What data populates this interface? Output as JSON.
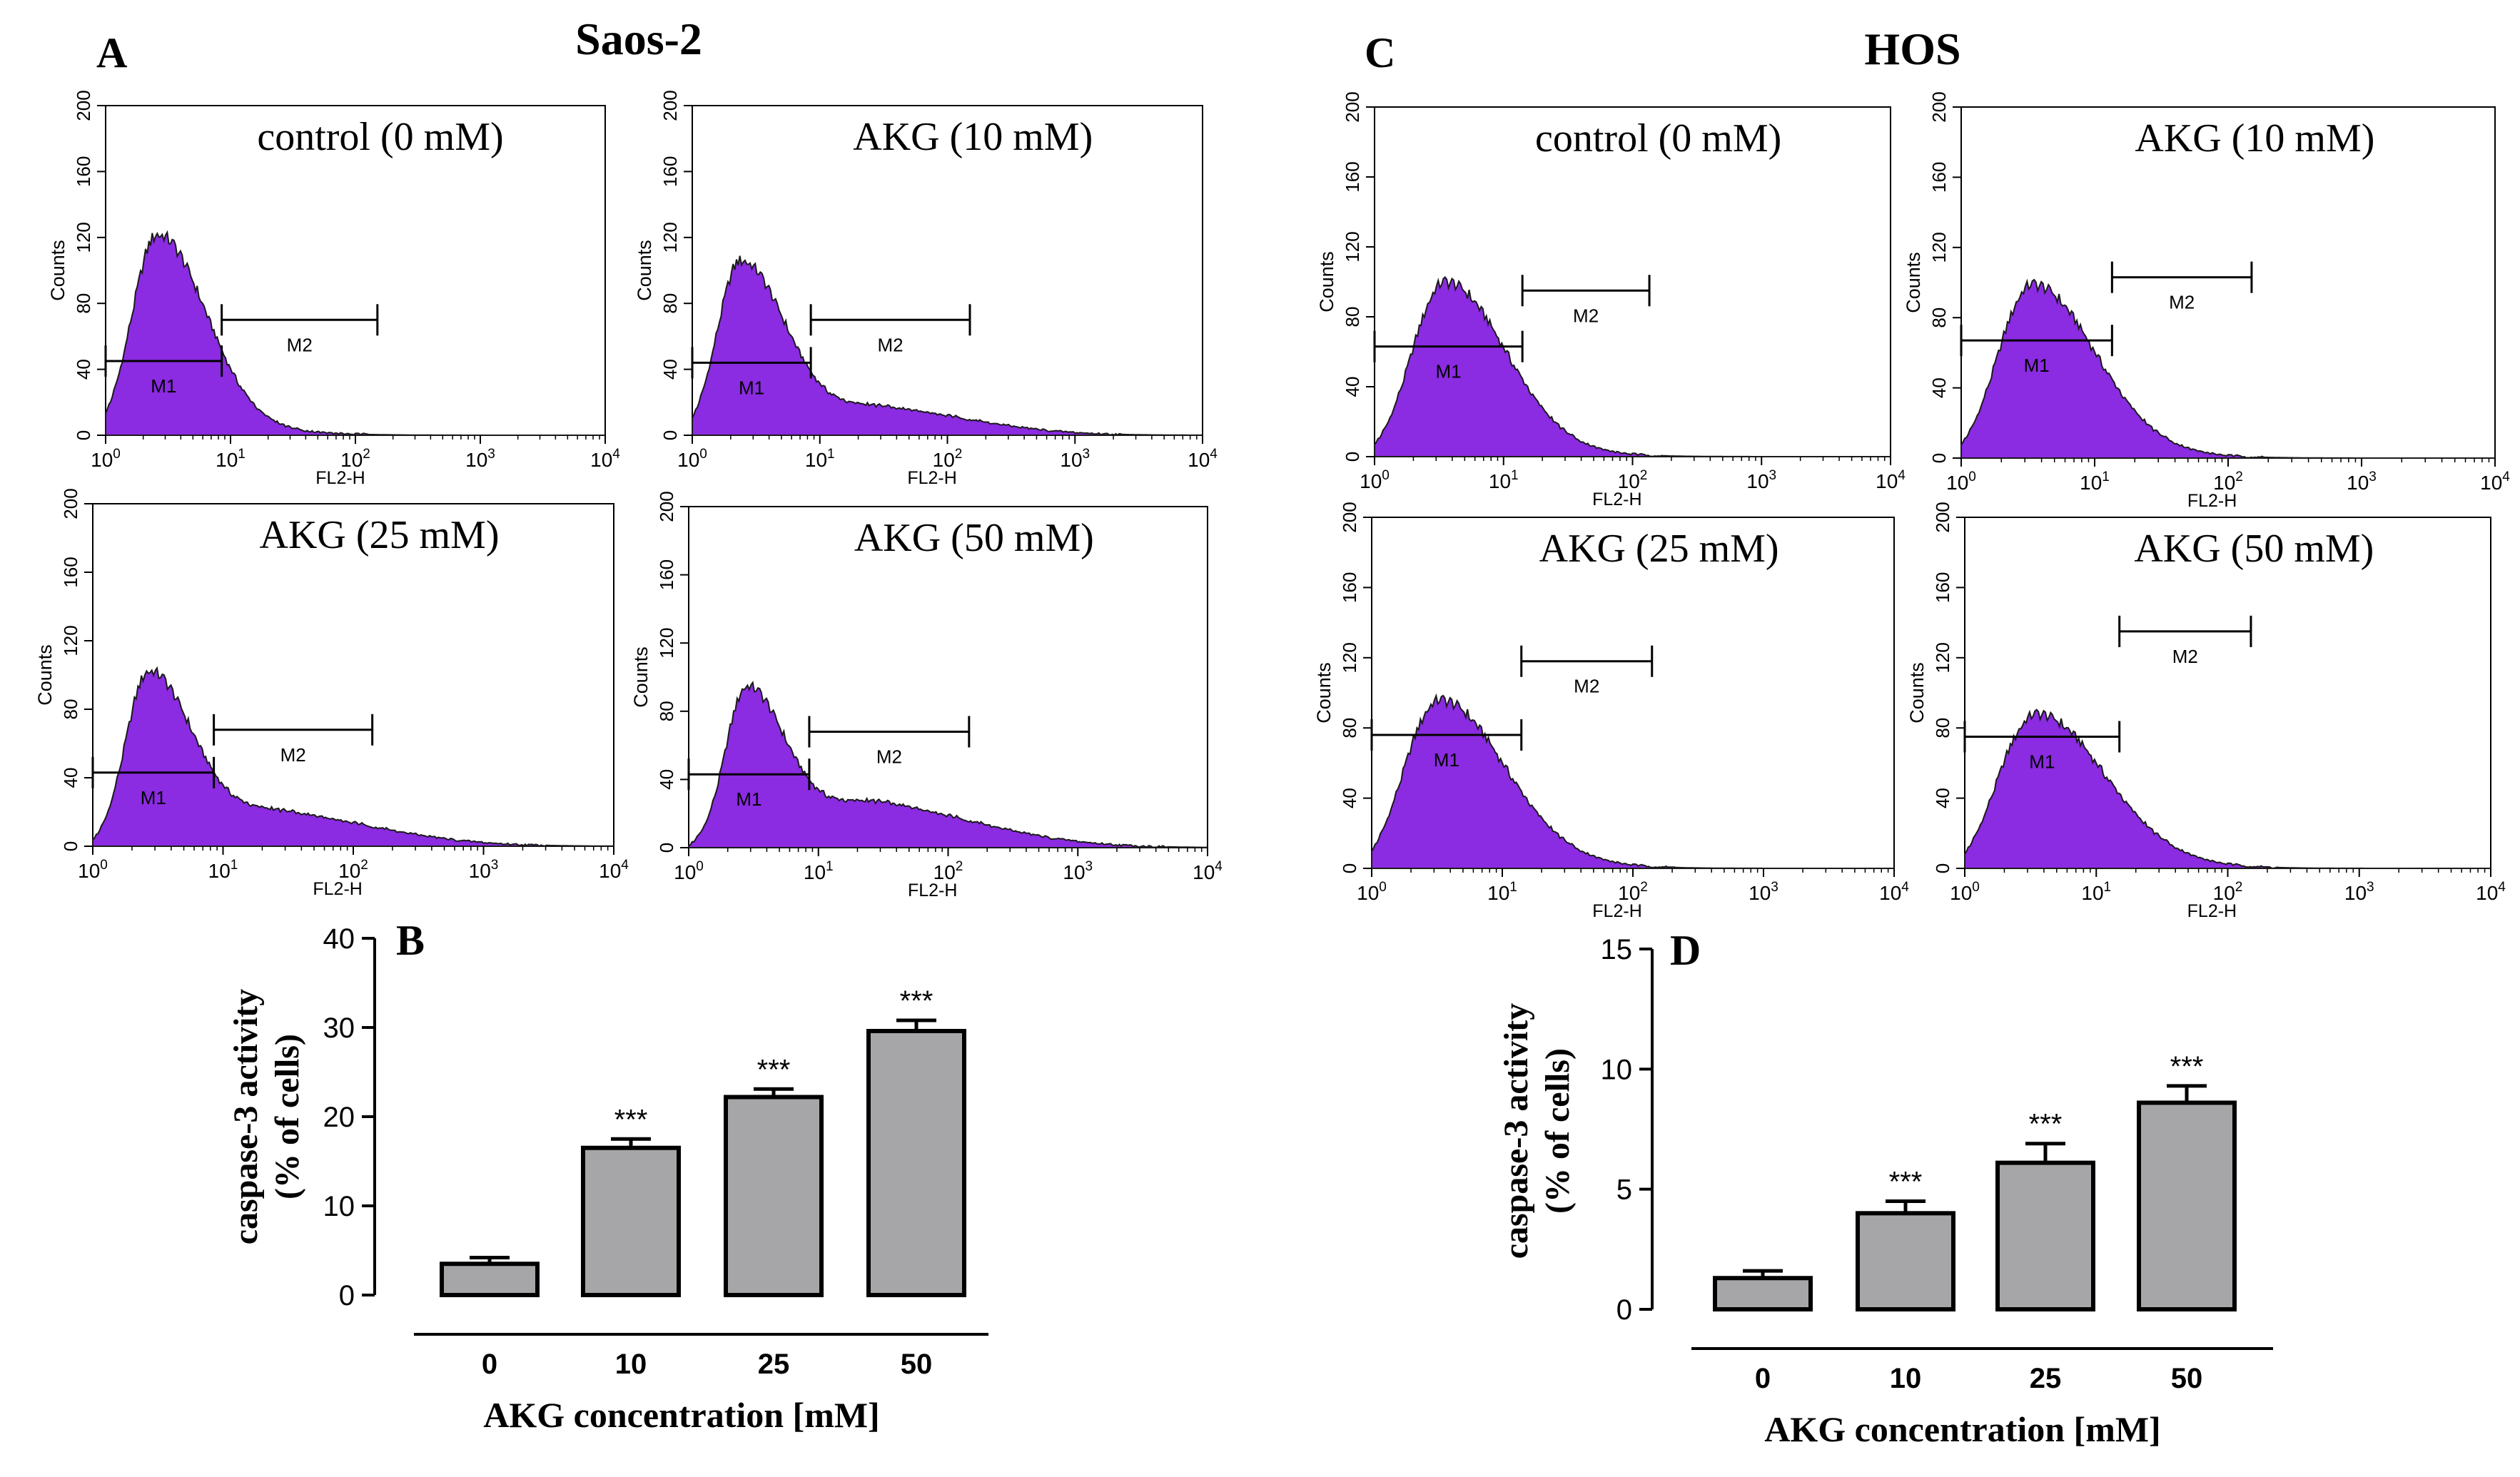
{
  "figure": {
    "panel_letters": {
      "A": "A",
      "B": "B",
      "C": "C",
      "D": "D"
    },
    "group_titles": {
      "left": "Saos-2",
      "right": "HOS"
    },
    "histogram_common": {
      "y_axis_label": "Counts",
      "x_axis_label": "FL2-H",
      "y_ticks": [
        "0",
        "40",
        "80",
        "120",
        "160",
        "200"
      ],
      "x_tick_base": "10",
      "x_tick_exponents": [
        "0",
        "1",
        "2",
        "3",
        "4"
      ],
      "gate_labels": {
        "m1": "M1",
        "m2": "M2"
      },
      "fill_color": "#8b2be2"
    },
    "bar_common": {
      "y_label_line1": "caspase-3 activity",
      "y_label_line2": "(% of cells)",
      "x_label": "AKG concentration [mM]",
      "bar_color": "#a6a6a8",
      "significance": "***"
    }
  },
  "chart_data": [
    {
      "id": "A1",
      "type": "area",
      "group": "Saos-2",
      "title": "control (0 mM)",
      "xlabel": "FL2-H",
      "ylabel": "Counts",
      "xscale": "log",
      "xlim": [
        1,
        10000
      ],
      "ylim": [
        0,
        200
      ],
      "peaks": [
        {
          "x": 2.6,
          "y": 116,
          "sigma": 0.2
        }
      ],
      "baseline": 6,
      "gates": [
        {
          "label": "M1",
          "from": 1,
          "to": 8.5,
          "level": 45
        },
        {
          "label": "M2",
          "from": 8.5,
          "to": 150,
          "level": 70
        }
      ]
    },
    {
      "id": "A2",
      "type": "area",
      "group": "Saos-2",
      "title": "AKG (10 mM)",
      "xlabel": "FL2-H",
      "ylabel": "Counts",
      "xscale": "log",
      "xlim": [
        1,
        10000
      ],
      "ylim": [
        0,
        200
      ],
      "peaks": [
        {
          "x": 2.4,
          "y": 98,
          "sigma": 0.18
        },
        {
          "x": 32,
          "y": 14,
          "sigma": 0.38
        }
      ],
      "baseline": 8,
      "gates": [
        {
          "label": "M1",
          "from": 1,
          "to": 8.5,
          "level": 44
        },
        {
          "label": "M2",
          "from": 8.5,
          "to": 150,
          "level": 70
        }
      ]
    },
    {
      "id": "A3",
      "type": "area",
      "group": "Saos-2",
      "title": "AKG (25 mM)",
      "xlabel": "FL2-H",
      "ylabel": "Counts",
      "xscale": "log",
      "xlim": [
        1,
        10000
      ],
      "ylim": [
        0,
        200
      ],
      "peaks": [
        {
          "x": 2.7,
          "y": 92,
          "sigma": 0.17
        },
        {
          "x": 30,
          "y": 16,
          "sigma": 0.4
        }
      ],
      "baseline": 10,
      "gates": [
        {
          "label": "M1",
          "from": 1,
          "to": 8.5,
          "level": 43
        },
        {
          "label": "M2",
          "from": 8.5,
          "to": 140,
          "level": 68
        }
      ]
    },
    {
      "id": "A4",
      "type": "area",
      "group": "Saos-2",
      "title": "AKG (50 mM)",
      "xlabel": "FL2-H",
      "ylabel": "Counts",
      "xscale": "log",
      "xlim": [
        1,
        10000
      ],
      "ylim": [
        0,
        200
      ],
      "peaks": [
        {
          "x": 2.8,
          "y": 80,
          "sigma": 0.15
        },
        {
          "x": 32,
          "y": 21,
          "sigma": 0.42
        }
      ],
      "baseline": 14,
      "gates": [
        {
          "label": "M1",
          "from": 1,
          "to": 8.5,
          "level": 43
        },
        {
          "label": "M2",
          "from": 8.5,
          "to": 145,
          "level": 68
        }
      ]
    },
    {
      "id": "C1",
      "type": "area",
      "group": "HOS",
      "title": "control (0 mM)",
      "xlabel": "FL2-H",
      "ylabel": "Counts",
      "xscale": "log",
      "xlim": [
        1,
        10000
      ],
      "ylim": [
        0,
        200
      ],
      "peaks": [
        {
          "x": 3.5,
          "y": 92,
          "sigma": 0.24
        }
      ],
      "baseline": 8,
      "gates": [
        {
          "label": "M1",
          "from": 1,
          "to": 14,
          "level": 63
        },
        {
          "label": "M2",
          "from": 14,
          "to": 135,
          "level": 95
        }
      ]
    },
    {
      "id": "C2",
      "type": "area",
      "group": "HOS",
      "title": "AKG (10 mM)",
      "xlabel": "FL2-H",
      "ylabel": "Counts",
      "xscale": "log",
      "xlim": [
        1,
        10000
      ],
      "ylim": [
        0,
        200
      ],
      "peaks": [
        {
          "x": 3.4,
          "y": 90,
          "sigma": 0.24
        }
      ],
      "baseline": 9,
      "gates": [
        {
          "label": "M1",
          "from": 1,
          "to": 13.5,
          "level": 67
        },
        {
          "label": "M2",
          "from": 13.5,
          "to": 150,
          "level": 103
        }
      ]
    },
    {
      "id": "C3",
      "type": "area",
      "group": "HOS",
      "title": "AKG (25 mM)",
      "xlabel": "FL2-H",
      "ylabel": "Counts",
      "xscale": "log",
      "xlim": [
        1,
        10000
      ],
      "ylim": [
        0,
        200
      ],
      "peaks": [
        {
          "x": 3.3,
          "y": 84,
          "sigma": 0.25
        }
      ],
      "baseline": 12,
      "gates": [
        {
          "label": "M1",
          "from": 1,
          "to": 14,
          "level": 76
        },
        {
          "label": "M2",
          "from": 14,
          "to": 140,
          "level": 118
        }
      ]
    },
    {
      "id": "C4",
      "type": "area",
      "group": "HOS",
      "title": "AKG (50 mM)",
      "xlabel": "FL2-H",
      "ylabel": "Counts",
      "xscale": "log",
      "xlim": [
        1,
        10000
      ],
      "ylim": [
        0,
        200
      ],
      "peaks": [
        {
          "x": 3.5,
          "y": 74,
          "sigma": 0.26
        }
      ],
      "baseline": 14,
      "gates": [
        {
          "label": "M1",
          "from": 1,
          "to": 15,
          "level": 75
        },
        {
          "label": "M2",
          "from": 15,
          "to": 150,
          "level": 135
        }
      ]
    },
    {
      "id": "B",
      "type": "bar",
      "group": "Saos-2",
      "title": "",
      "categories": [
        "0",
        "10",
        "25",
        "50"
      ],
      "values": [
        3.5,
        16.5,
        22.2,
        29.6
      ],
      "errors": [
        0.7,
        1.0,
        0.9,
        1.2
      ],
      "significant": [
        false,
        true,
        true,
        true
      ],
      "xlabel": "AKG concentration [mM]",
      "ylabel": "caspase-3 activity (% of cells)",
      "ylim": [
        0,
        40
      ],
      "yticks": [
        0,
        10,
        20,
        30,
        40
      ]
    },
    {
      "id": "D",
      "type": "bar",
      "group": "HOS",
      "title": "",
      "categories": [
        "0",
        "10",
        "25",
        "50"
      ],
      "values": [
        1.3,
        4.0,
        6.1,
        8.6
      ],
      "errors": [
        0.3,
        0.5,
        0.8,
        0.7
      ],
      "significant": [
        false,
        true,
        true,
        true
      ],
      "xlabel": "AKG concentration [mM]",
      "ylabel": "caspase-3 activity (% of cells)",
      "ylim": [
        0,
        15
      ],
      "yticks": [
        0,
        5,
        10,
        15
      ]
    }
  ]
}
